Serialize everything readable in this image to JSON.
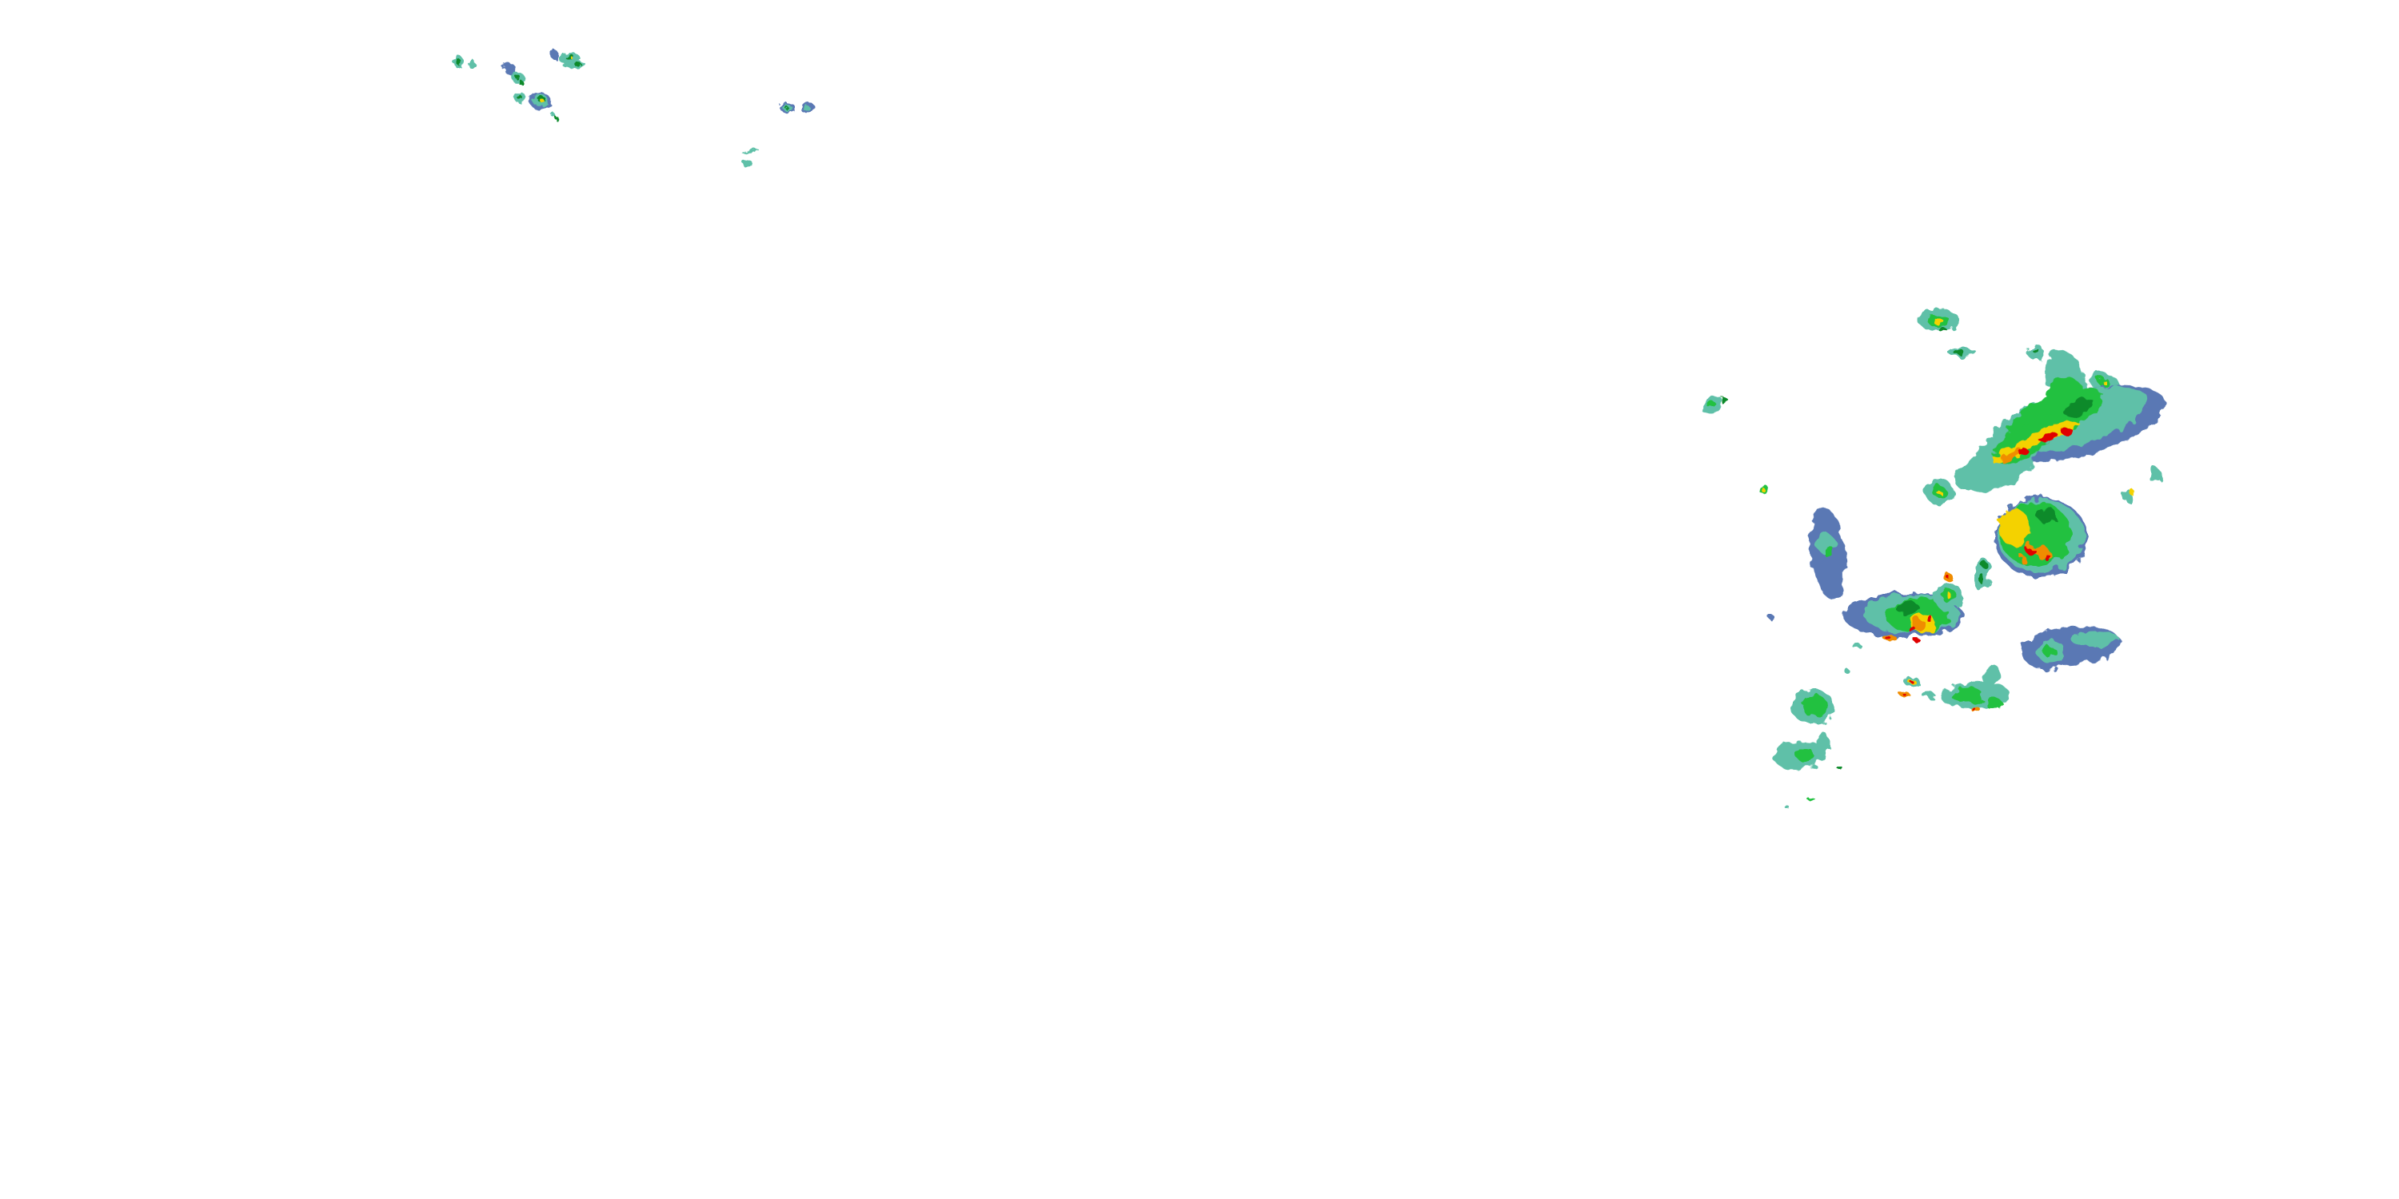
{
  "map": {
    "layer": "radar-reflectivity",
    "background": "#ffffff",
    "palette": {
      "light_blue": "#5a78b4",
      "teal": "#5fc0a8",
      "green": "#22c13f",
      "dark_green": "#0b8a2c",
      "yellow": "#f4d200",
      "orange": "#f08c00",
      "red": "#e00000"
    }
  }
}
